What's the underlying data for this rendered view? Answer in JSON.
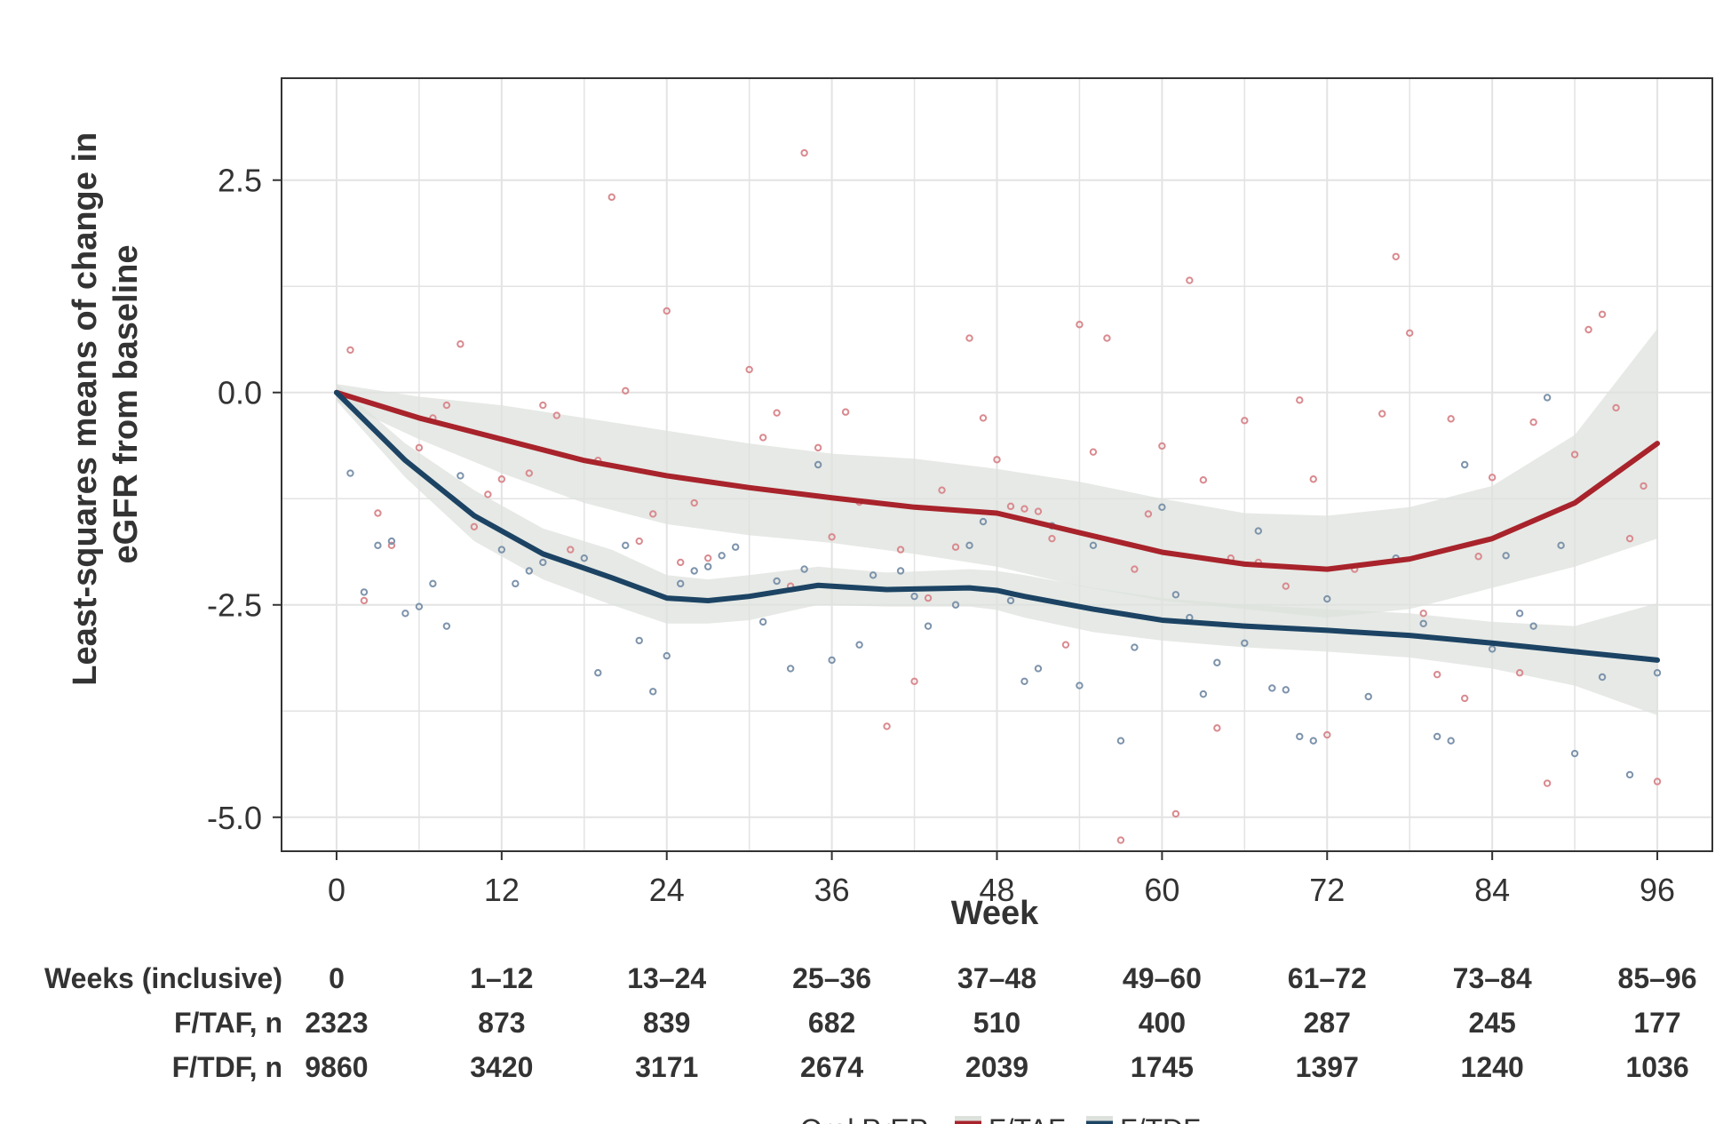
{
  "chart_data": {
    "type": "scatter",
    "ylabel": "Least-squares means of change in eGFR from baseline",
    "xlabel": "Week",
    "xlim": [
      -4,
      100
    ],
    "ylim": [
      -5.4,
      3.7
    ],
    "x_ticks": [
      0,
      12,
      24,
      36,
      48,
      60,
      72,
      84,
      96
    ],
    "x_tick_labels": [
      "0",
      "12",
      "24",
      "36",
      "48",
      "60",
      "72",
      "84",
      "96"
    ],
    "y_ticks": [
      2.5,
      0.0,
      -2.5,
      -5.0
    ],
    "y_tick_labels": [
      "2.5",
      "0.0",
      "-2.5",
      "-5.0"
    ],
    "grid": true,
    "legend": {
      "title": "Oral PrEP",
      "placement": "bottom",
      "entries": [
        "F/TAF",
        "F/TDF"
      ]
    },
    "colors": {
      "ftaf": "#a8232b",
      "ftdf": "#1c4363",
      "ftaf_point": "#d98a8f",
      "ftdf_point": "#7d93ab",
      "band": "#dde1dc",
      "grid": "#e3e3e3",
      "frame": "#333333"
    },
    "series": [
      {
        "name": "F/TAF",
        "trend": {
          "x": [
            0,
            6,
            12,
            18,
            24,
            30,
            36,
            42,
            48,
            54,
            60,
            66,
            72,
            78,
            84,
            90,
            96
          ],
          "y": [
            0.0,
            -0.3,
            -0.55,
            -0.8,
            -0.98,
            -1.12,
            -1.24,
            -1.35,
            -1.42,
            -1.65,
            -1.88,
            -2.02,
            -2.08,
            -1.96,
            -1.72,
            -1.3,
            -0.6
          ],
          "ci_upper": [
            0.1,
            -0.05,
            -0.15,
            -0.3,
            -0.45,
            -0.6,
            -0.72,
            -0.78,
            -0.9,
            -1.05,
            -1.25,
            -1.42,
            -1.45,
            -1.35,
            -1.1,
            -0.5,
            0.75
          ],
          "ci_lower": [
            -0.1,
            -0.55,
            -0.95,
            -1.3,
            -1.55,
            -1.68,
            -1.77,
            -1.9,
            -2.05,
            -2.28,
            -2.45,
            -2.55,
            -2.65,
            -2.55,
            -2.3,
            -2.05,
            -1.72
          ]
        },
        "points": {
          "x": [
            1,
            2,
            3,
            4,
            6,
            7,
            8,
            9,
            10,
            11,
            12,
            14,
            15,
            16,
            17,
            19,
            20,
            21,
            22,
            23,
            24,
            25,
            26,
            27,
            30,
            31,
            32,
            33,
            34,
            35,
            36,
            37,
            38,
            40,
            41,
            42,
            43,
            44,
            45,
            46,
            47,
            48,
            49,
            50,
            51,
            52,
            53,
            54,
            55,
            56,
            57,
            58,
            59,
            60,
            61,
            62,
            63,
            64,
            65,
            66,
            67,
            69,
            70,
            71,
            72,
            74,
            76,
            77,
            78,
            79,
            80,
            81,
            82,
            83,
            84,
            86,
            87,
            88,
            90,
            91,
            92,
            93,
            94,
            95,
            96
          ],
          "y": [
            0.5,
            -2.45,
            -1.42,
            -1.8,
            -0.65,
            -0.3,
            -0.15,
            0.57,
            -1.58,
            -1.2,
            -1.02,
            -0.95,
            -0.15,
            -0.27,
            -1.85,
            -0.8,
            2.3,
            0.02,
            -1.75,
            -1.43,
            0.96,
            -2.0,
            -1.3,
            -1.95,
            0.27,
            -0.53,
            -0.24,
            -2.28,
            2.82,
            -0.65,
            -1.7,
            -0.23,
            -1.29,
            -3.93,
            -1.85,
            -3.4,
            -2.42,
            -1.15,
            -1.82,
            0.64,
            -0.3,
            -0.79,
            -1.34,
            -1.37,
            -1.4,
            -1.72,
            -2.97,
            0.8,
            -0.7,
            0.64,
            -5.27,
            -2.08,
            -1.43,
            -0.63,
            -4.96,
            1.32,
            -1.03,
            -3.95,
            -1.95,
            -0.33,
            -2.0,
            -2.28,
            -0.09,
            -1.02,
            -4.03,
            -2.08,
            -0.25,
            1.6,
            0.7,
            -2.6,
            -3.32,
            -0.31,
            -3.6,
            -1.93,
            -1.0,
            -3.3,
            -0.35,
            -4.6,
            -0.73,
            0.74,
            0.92,
            -0.18,
            -1.72,
            -1.1,
            -4.58
          ]
        }
      },
      {
        "name": "F/TDF",
        "trend": {
          "x": [
            0,
            5,
            10,
            15,
            20,
            24,
            27,
            30,
            35,
            40,
            46,
            48,
            50,
            55,
            60,
            66,
            72,
            78,
            84,
            90,
            96
          ],
          "y": [
            0.0,
            -0.8,
            -1.45,
            -1.9,
            -2.18,
            -2.42,
            -2.45,
            -2.4,
            -2.27,
            -2.32,
            -2.3,
            -2.33,
            -2.4,
            -2.55,
            -2.68,
            -2.75,
            -2.8,
            -2.86,
            -2.95,
            -3.05,
            -3.15
          ],
          "ci_upper": [
            0.1,
            -0.6,
            -1.15,
            -1.6,
            -1.85,
            -2.15,
            -2.2,
            -2.15,
            -2.05,
            -2.12,
            -2.08,
            -2.1,
            -2.15,
            -2.3,
            -2.42,
            -2.5,
            -2.55,
            -2.6,
            -2.7,
            -2.75,
            -2.48
          ],
          "ci_lower": [
            -0.1,
            -1.0,
            -1.75,
            -2.2,
            -2.5,
            -2.72,
            -2.72,
            -2.68,
            -2.5,
            -2.52,
            -2.52,
            -2.56,
            -2.65,
            -2.82,
            -2.92,
            -3.0,
            -3.05,
            -3.12,
            -3.25,
            -3.45,
            -3.8
          ]
        },
        "points": {
          "x": [
            1,
            2,
            3,
            4,
            5,
            6,
            7,
            8,
            9,
            12,
            13,
            14,
            15,
            18,
            19,
            21,
            22,
            23,
            24,
            25,
            26,
            27,
            28,
            29,
            31,
            32,
            33,
            34,
            35,
            36,
            38,
            39,
            41,
            42,
            43,
            45,
            46,
            47,
            49,
            50,
            51,
            52,
            54,
            55,
            57,
            58,
            60,
            61,
            62,
            63,
            64,
            66,
            67,
            68,
            69,
            70,
            71,
            72,
            75,
            77,
            79,
            80,
            81,
            82,
            84,
            85,
            86,
            87,
            88,
            89,
            90,
            92,
            94,
            96
          ],
          "y": [
            -0.95,
            -2.35,
            -1.8,
            -1.75,
            -2.6,
            -2.52,
            -2.25,
            -2.75,
            -0.98,
            -1.85,
            -2.25,
            -2.1,
            -2.0,
            -1.95,
            -3.3,
            -1.8,
            -2.92,
            -3.52,
            -3.1,
            -2.25,
            -2.1,
            -2.05,
            -1.92,
            -1.82,
            -2.7,
            -2.22,
            -3.25,
            -2.08,
            -0.85,
            -3.15,
            -2.97,
            -2.15,
            -2.1,
            -2.4,
            -2.75,
            -2.5,
            -1.8,
            -1.52,
            -2.45,
            -3.4,
            -3.25,
            -1.57,
            -3.45,
            -1.8,
            -4.1,
            -3.0,
            -1.35,
            -2.38,
            -2.65,
            -3.55,
            -3.18,
            -2.95,
            -1.63,
            -3.48,
            -3.5,
            -4.05,
            -4.1,
            -2.43,
            -3.58,
            -1.95,
            -2.72,
            -4.05,
            -4.1,
            -0.85,
            -3.02,
            -1.92,
            -2.6,
            -2.75,
            -0.06,
            -1.8,
            -4.25,
            -3.35,
            -4.5,
            -3.3
          ]
        }
      }
    ],
    "risk_table": {
      "header_label": "Weeks (inclusive)",
      "columns": [
        "0",
        "1–12",
        "13–24",
        "25–36",
        "37–48",
        "49–60",
        "61–72",
        "73–84",
        "85–96"
      ],
      "rows": [
        {
          "label": "F/TAF, n",
          "values": [
            "2323",
            "873",
            "839",
            "682",
            "510",
            "400",
            "287",
            "245",
            "177"
          ]
        },
        {
          "label": "F/TDF, n",
          "values": [
            "9860",
            "3420",
            "3171",
            "2674",
            "2039",
            "1745",
            "1397",
            "1240",
            "1036"
          ]
        }
      ]
    }
  }
}
